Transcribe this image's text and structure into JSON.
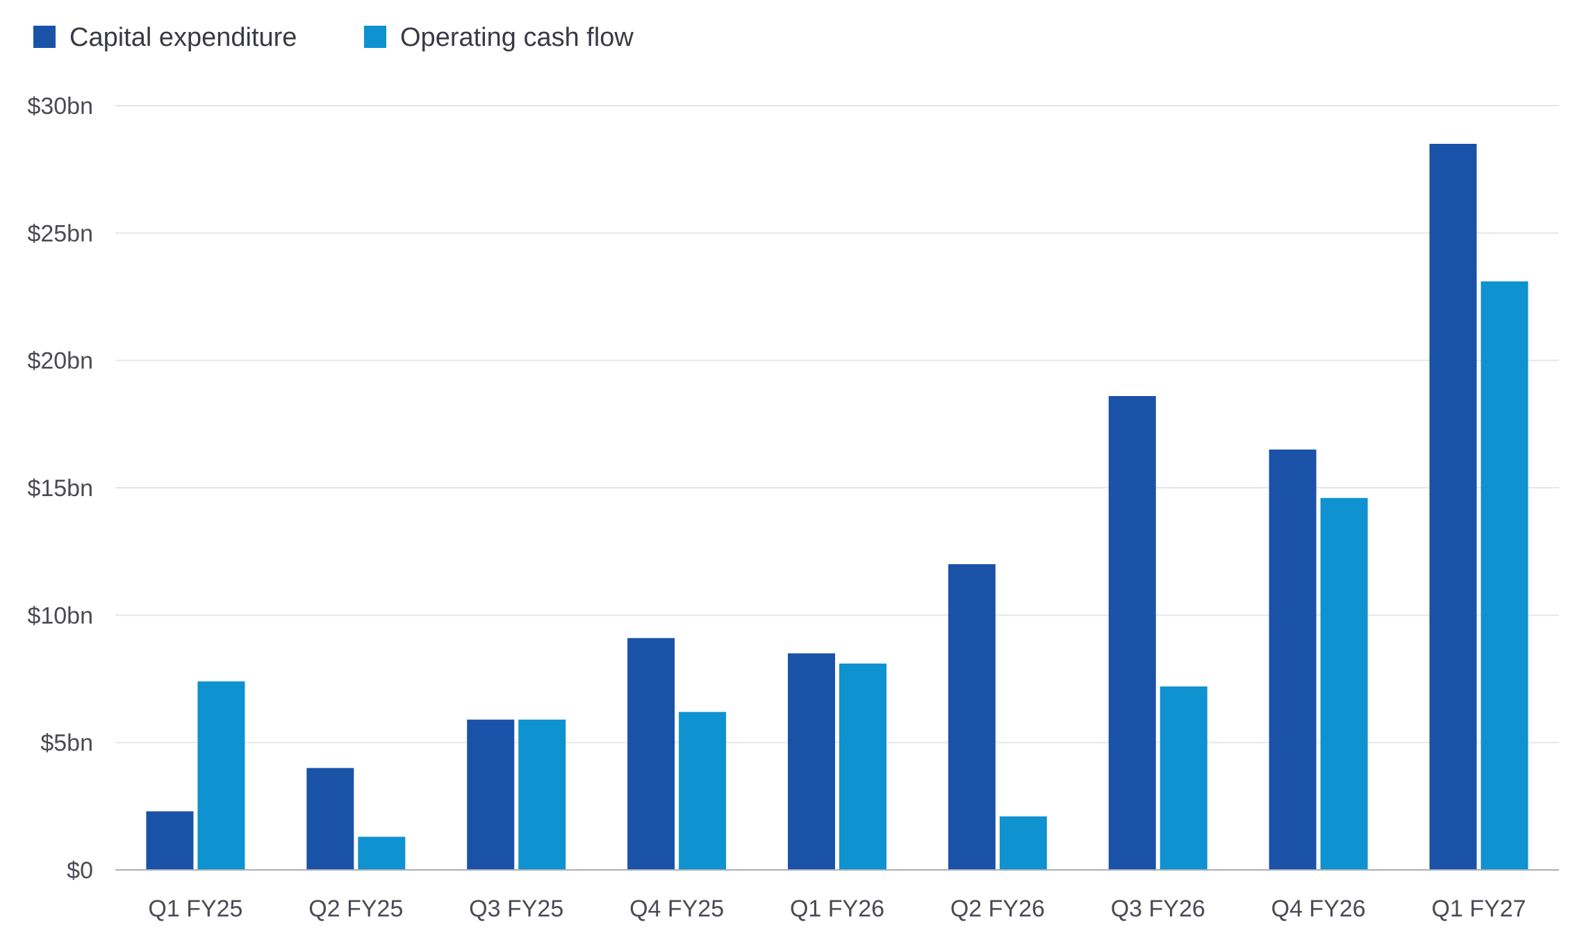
{
  "chart_data": {
    "type": "bar",
    "categories": [
      "Q1 FY25",
      "Q2 FY25",
      "Q3 FY25",
      "Q4 FY25",
      "Q1 FY26",
      "Q2 FY26",
      "Q3 FY26",
      "Q4 FY26",
      "Q1 FY27"
    ],
    "series": [
      {
        "name": "Capital expenditure",
        "color": "#1a52a8",
        "values": [
          2.3,
          4.0,
          5.9,
          9.1,
          8.5,
          12.0,
          18.6,
          16.5,
          28.5
        ]
      },
      {
        "name": "Operating cash flow",
        "color": "#0e92d0",
        "values": [
          7.4,
          1.3,
          5.9,
          6.2,
          8.1,
          2.1,
          7.2,
          14.6,
          23.1
        ]
      }
    ],
    "ylim": [
      0,
      30
    ],
    "y_ticks": [
      0,
      5,
      10,
      15,
      20,
      25,
      30
    ],
    "y_tick_labels": [
      "$0",
      "$5bn",
      "$10bn",
      "$15bn",
      "$20bn",
      "$25bn",
      "$30bn"
    ],
    "grid": true,
    "legend_position": "top-left"
  }
}
